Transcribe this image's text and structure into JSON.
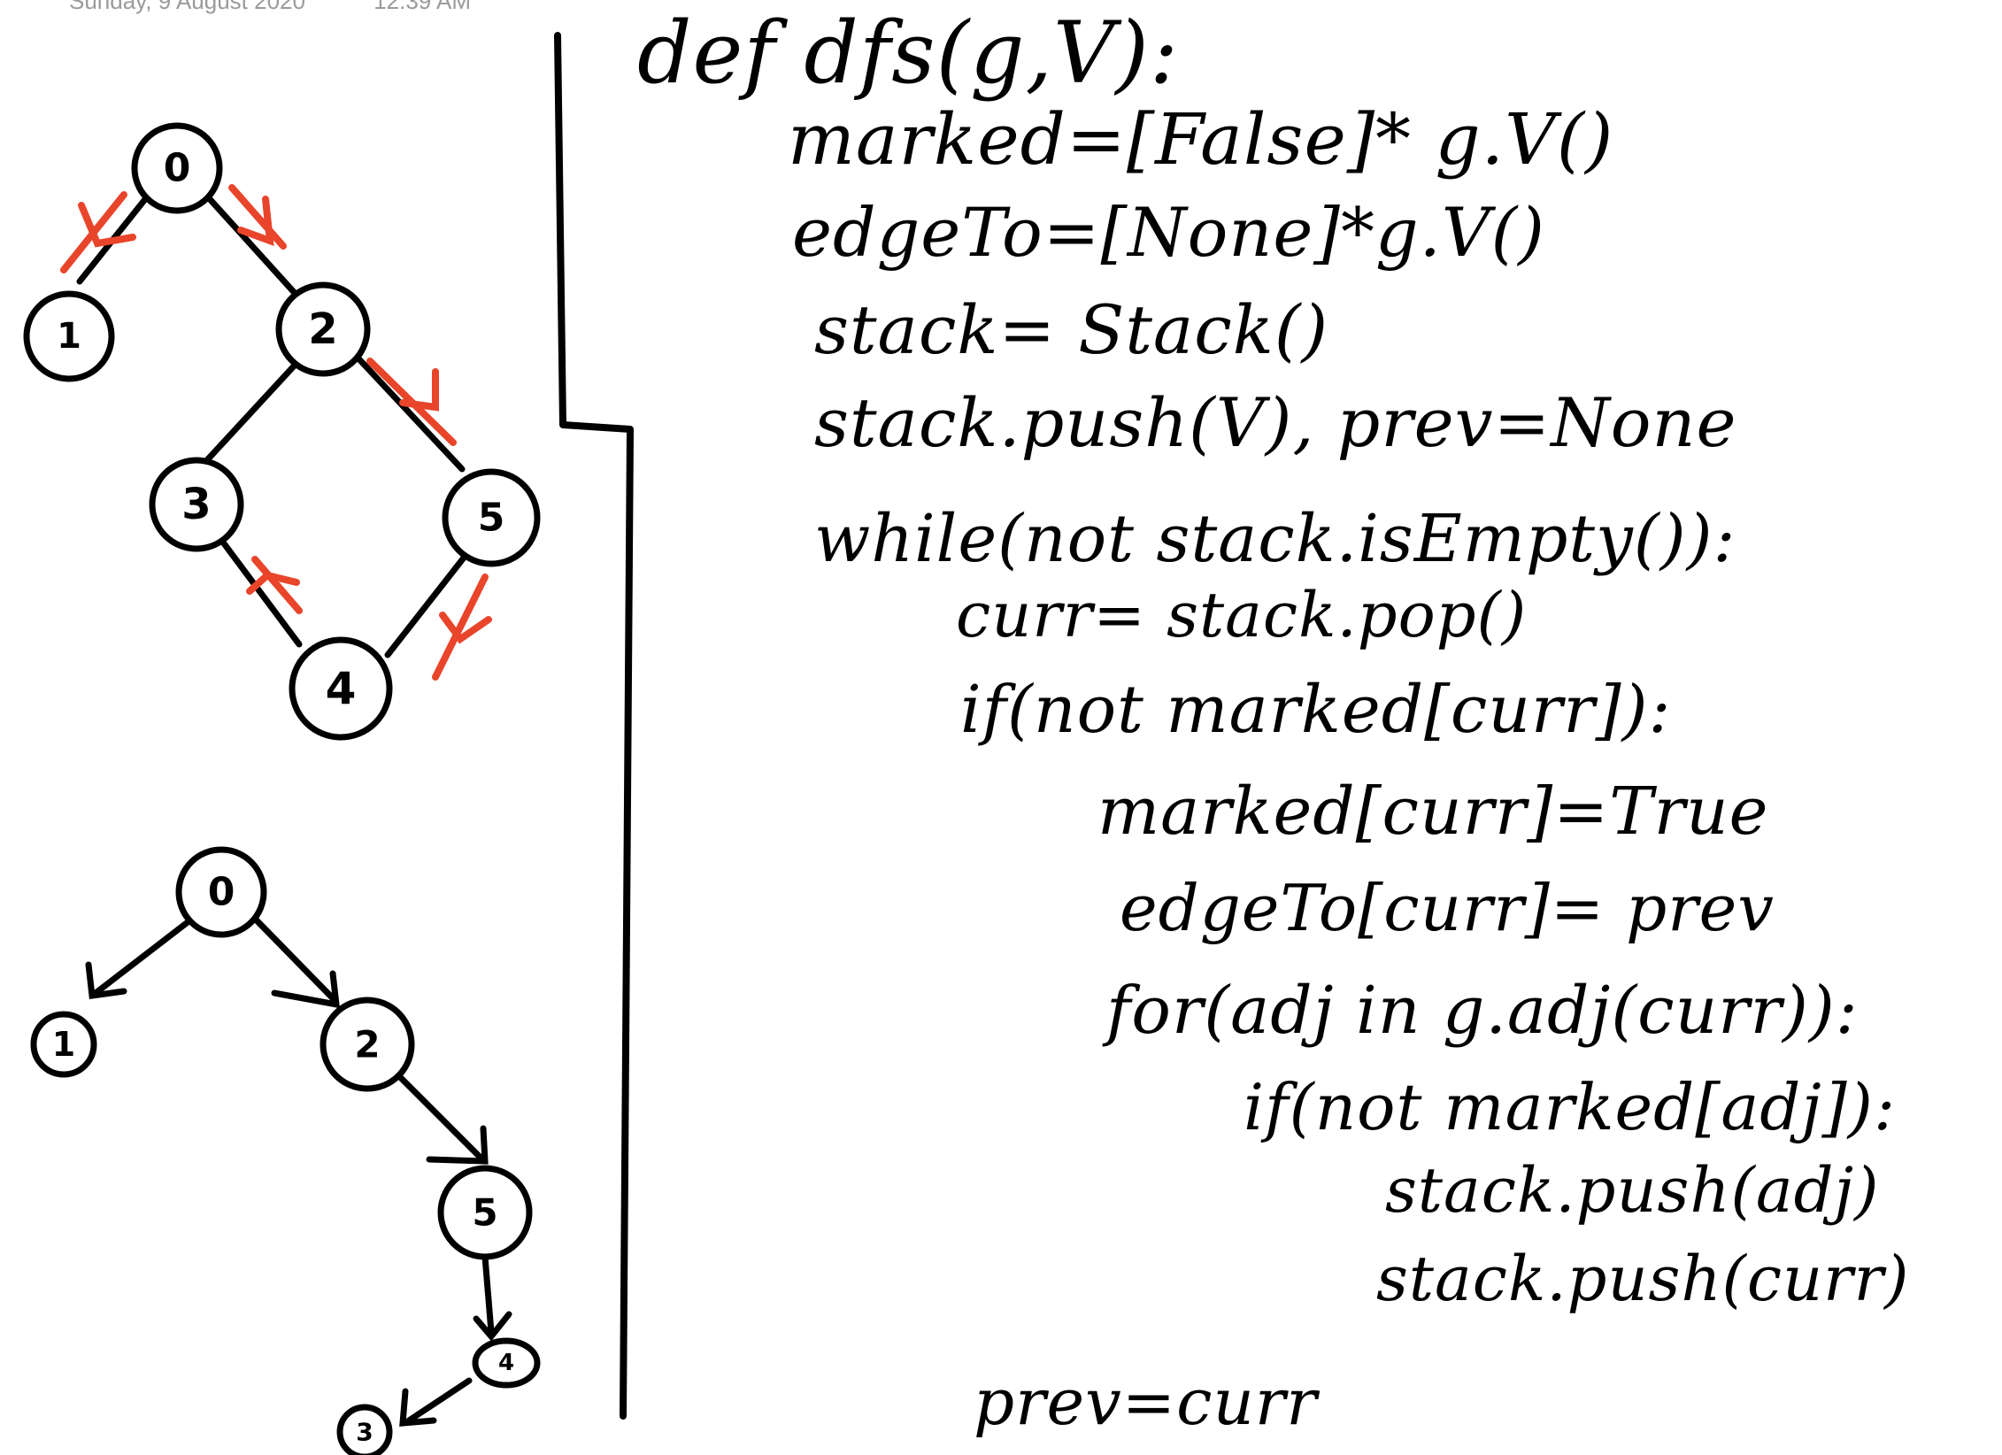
{
  "header": {
    "date": "Sunday, 9 August 2020",
    "time": "12:39 AM"
  },
  "colors": {
    "ink": "#000000",
    "annotation": "#e8452b"
  },
  "graph_top": {
    "nodes": [
      "0",
      "1",
      "2",
      "3",
      "5",
      "4"
    ]
  },
  "graph_bottom": {
    "nodes": [
      "0",
      "1",
      "2",
      "5",
      "4",
      "3"
    ]
  },
  "code": {
    "lines": [
      "def dfs(g,V):",
      "marked=[False]* g.V()",
      "edgeTo=[None]*g.V()",
      "stack= Stack()",
      "stack.push(V), prev=None",
      "while(not stack.isEmpty()):",
      "curr= stack.pop()",
      "if(not marked[curr]):",
      "marked[curr]=True",
      "edgeTo[curr]= prev",
      "for(adj in g.adj(curr)):",
      "if(not marked[adj]):",
      "stack.push(adj)",
      "stack.push(curr)",
      "prev=curr"
    ]
  }
}
